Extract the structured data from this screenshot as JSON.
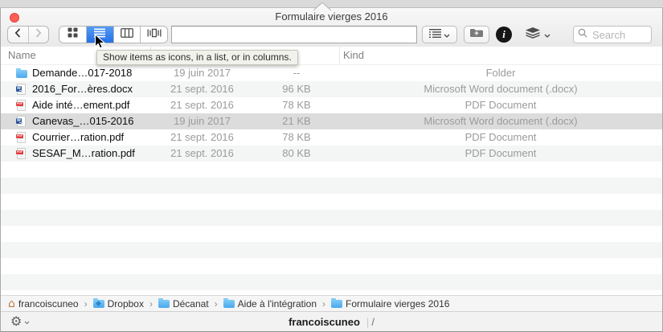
{
  "window": {
    "title": "Formulaire vierges 2016"
  },
  "toolbar": {
    "search_placeholder": "Search",
    "path_field_value": ""
  },
  "tooltip": {
    "text": "Show items as icons, in a list, or in columns."
  },
  "columns": {
    "name": "Name",
    "kind": "Kind"
  },
  "files": {
    "rows": [
      {
        "icon": "folder",
        "name": "Demande…017-2018",
        "date": "19 juin 2017",
        "size": "--",
        "kind": "Folder",
        "selected": false
      },
      {
        "icon": "word",
        "name": "2016_For…ères.docx",
        "date": "21 sept. 2016",
        "size": "96 KB",
        "kind": "Microsoft Word document (.docx)",
        "selected": false
      },
      {
        "icon": "pdf",
        "name": "Aide inté…ement.pdf",
        "date": "21 sept. 2016",
        "size": "78 KB",
        "kind": "PDF Document",
        "selected": false
      },
      {
        "icon": "word",
        "name": "Canevas_…015-2016",
        "date": "19 juin 2017",
        "size": "21 KB",
        "kind": "Microsoft Word document (.docx)",
        "selected": true
      },
      {
        "icon": "pdf",
        "name": "Courrier…ration.pdf",
        "date": "21 sept. 2016",
        "size": "78 KB",
        "kind": "PDF Document",
        "selected": false
      },
      {
        "icon": "pdf",
        "name": "SESAF_M…ration.pdf",
        "date": "21 sept. 2016",
        "size": "80 KB",
        "kind": "PDF Document",
        "selected": false
      }
    ],
    "empty_rows": 8
  },
  "pathbar": {
    "separator": "›",
    "items": [
      {
        "icon": "home",
        "label": "francoiscuneo"
      },
      {
        "icon": "dropbox-folder",
        "label": "Dropbox"
      },
      {
        "icon": "folder",
        "label": "Décanat"
      },
      {
        "icon": "folder",
        "label": "Aide à l'intégration"
      },
      {
        "icon": "folder",
        "label": "Formulaire vierges 2016"
      }
    ]
  },
  "statusbar": {
    "location": "francoiscuneo",
    "suffix": "/"
  },
  "colors": {
    "accent_blue": "#2d80ea",
    "folder_blue": "#58b5f0",
    "selected_row": "#dcdcdc",
    "close_red": "#fc5e56",
    "pdf_red": "#e03a3a",
    "word_blue": "#2b579a"
  }
}
